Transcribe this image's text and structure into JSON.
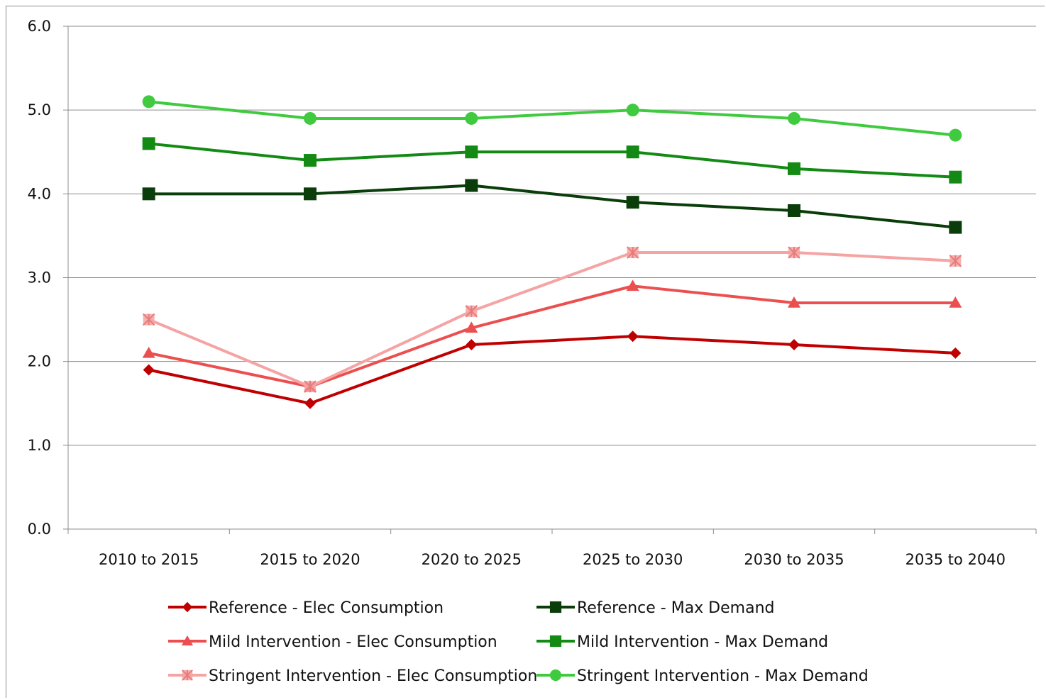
{
  "chart_data": {
    "type": "line",
    "title": "",
    "xlabel": "",
    "ylabel": "",
    "ylim": [
      0,
      6
    ],
    "yticks": [
      "0.0",
      "1.0",
      "2.0",
      "3.0",
      "4.0",
      "5.0",
      "6.0"
    ],
    "grid": "horizontal",
    "legend_position": "bottom",
    "categories": [
      "2010 to 2015",
      "2015 to 2020",
      "2020 to 2025",
      "2025 to 2030",
      "2030 to 2035",
      "2035 to 2040"
    ],
    "series": [
      {
        "name": "Reference - Elec Consumption",
        "color": "#c00000",
        "marker": "diamond",
        "values": [
          1.9,
          1.5,
          2.2,
          2.3,
          2.2,
          2.1
        ]
      },
      {
        "name": "Mild Intervention - Elec Consumption",
        "color": "#ec4f4f",
        "marker": "triangle",
        "values": [
          2.1,
          1.7,
          2.4,
          2.9,
          2.7,
          2.7
        ]
      },
      {
        "name": "Stringent Intervention - Elec Consumption",
        "color": "#f5a3a3",
        "marker": "asterisk-square",
        "values": [
          2.5,
          1.7,
          2.6,
          3.3,
          3.3,
          3.2
        ]
      },
      {
        "name": "Reference - Max Demand",
        "color": "#0a3d0a",
        "marker": "square",
        "values": [
          4.0,
          4.0,
          4.1,
          3.9,
          3.8,
          3.6
        ]
      },
      {
        "name": "Mild Intervention - Max Demand",
        "color": "#138a13",
        "marker": "square",
        "values": [
          4.6,
          4.4,
          4.5,
          4.5,
          4.3,
          4.2
        ]
      },
      {
        "name": "Stringent Intervention - Max Demand",
        "color": "#3fca3f",
        "marker": "circle",
        "values": [
          5.1,
          4.9,
          4.9,
          5.0,
          4.9,
          4.7
        ]
      }
    ]
  }
}
